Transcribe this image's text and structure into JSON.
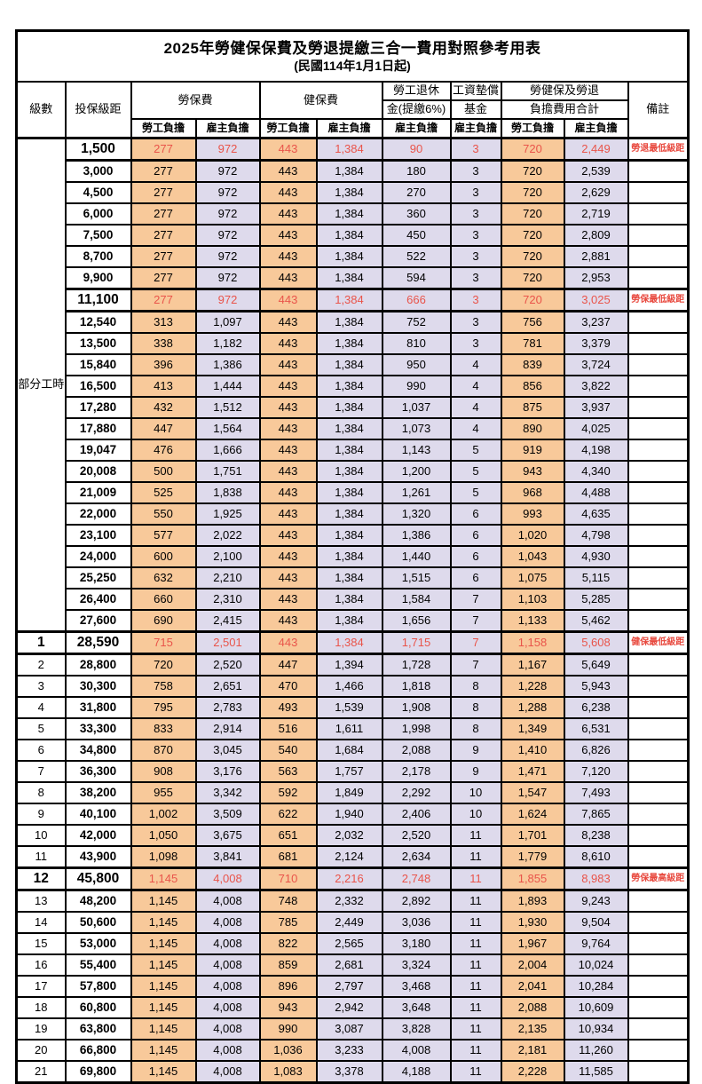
{
  "title": "2025年勞健保保費及勞退提繳三合一費用對照參考用表",
  "subtitle": "(民國114年1月1日起)",
  "colors": {
    "employee_column_bg": "#F8C99A",
    "employer_column_bg": "#DEDAEC",
    "highlight_value_red": "#E9544A",
    "remark_red": "#E8483D",
    "border_black": "#000000"
  },
  "header": {
    "level": "級數",
    "bracket": "投保級距",
    "labor": "勞保費",
    "health": "健保費",
    "pension_line1": "勞工退休",
    "pension_line2": "金(提繳6%)",
    "wage_line1": "工資墊償",
    "wage_line2": "基金",
    "total_line1": "勞健保及勞退",
    "total_line2": "負擔費用合計",
    "remark": "備註",
    "employee": "勞工負擔",
    "employer": "雇主負擔"
  },
  "part_time_label": "部分工時",
  "rows": [
    {
      "level": "",
      "bracket": "1,500",
      "values": [
        "277",
        "972",
        "443",
        "1,384",
        "90",
        "3",
        "720",
        "2,449"
      ],
      "remark": "勞退最低級距",
      "highlight": true
    },
    {
      "level": "",
      "bracket": "3,000",
      "values": [
        "277",
        "972",
        "443",
        "1,384",
        "180",
        "3",
        "720",
        "2,539"
      ],
      "remark": "",
      "highlight": false
    },
    {
      "level": "",
      "bracket": "4,500",
      "values": [
        "277",
        "972",
        "443",
        "1,384",
        "270",
        "3",
        "720",
        "2,629"
      ],
      "remark": "",
      "highlight": false
    },
    {
      "level": "",
      "bracket": "6,000",
      "values": [
        "277",
        "972",
        "443",
        "1,384",
        "360",
        "3",
        "720",
        "2,719"
      ],
      "remark": "",
      "highlight": false
    },
    {
      "level": "",
      "bracket": "7,500",
      "values": [
        "277",
        "972",
        "443",
        "1,384",
        "450",
        "3",
        "720",
        "2,809"
      ],
      "remark": "",
      "highlight": false
    },
    {
      "level": "",
      "bracket": "8,700",
      "values": [
        "277",
        "972",
        "443",
        "1,384",
        "522",
        "3",
        "720",
        "2,881"
      ],
      "remark": "",
      "highlight": false
    },
    {
      "level": "",
      "bracket": "9,900",
      "values": [
        "277",
        "972",
        "443",
        "1,384",
        "594",
        "3",
        "720",
        "2,953"
      ],
      "remark": "",
      "highlight": false
    },
    {
      "level": "",
      "bracket": "11,100",
      "values": [
        "277",
        "972",
        "443",
        "1,384",
        "666",
        "3",
        "720",
        "3,025"
      ],
      "remark": "勞保最低級距",
      "highlight": true
    },
    {
      "level": "",
      "bracket": "12,540",
      "values": [
        "313",
        "1,097",
        "443",
        "1,384",
        "752",
        "3",
        "756",
        "3,237"
      ],
      "remark": "",
      "highlight": false
    },
    {
      "level": "",
      "bracket": "13,500",
      "values": [
        "338",
        "1,182",
        "443",
        "1,384",
        "810",
        "3",
        "781",
        "3,379"
      ],
      "remark": "",
      "highlight": false
    },
    {
      "level": "",
      "bracket": "15,840",
      "values": [
        "396",
        "1,386",
        "443",
        "1,384",
        "950",
        "4",
        "839",
        "3,724"
      ],
      "remark": "",
      "highlight": false
    },
    {
      "level": "",
      "bracket": "16,500",
      "values": [
        "413",
        "1,444",
        "443",
        "1,384",
        "990",
        "4",
        "856",
        "3,822"
      ],
      "remark": "",
      "highlight": false
    },
    {
      "level": "",
      "bracket": "17,280",
      "values": [
        "432",
        "1,512",
        "443",
        "1,384",
        "1,037",
        "4",
        "875",
        "3,937"
      ],
      "remark": "",
      "highlight": false
    },
    {
      "level": "",
      "bracket": "17,880",
      "values": [
        "447",
        "1,564",
        "443",
        "1,384",
        "1,073",
        "4",
        "890",
        "4,025"
      ],
      "remark": "",
      "highlight": false
    },
    {
      "level": "",
      "bracket": "19,047",
      "values": [
        "476",
        "1,666",
        "443",
        "1,384",
        "1,143",
        "5",
        "919",
        "4,198"
      ],
      "remark": "",
      "highlight": false
    },
    {
      "level": "",
      "bracket": "20,008",
      "values": [
        "500",
        "1,751",
        "443",
        "1,384",
        "1,200",
        "5",
        "943",
        "4,340"
      ],
      "remark": "",
      "highlight": false
    },
    {
      "level": "",
      "bracket": "21,009",
      "values": [
        "525",
        "1,838",
        "443",
        "1,384",
        "1,261",
        "5",
        "968",
        "4,488"
      ],
      "remark": "",
      "highlight": false
    },
    {
      "level": "",
      "bracket": "22,000",
      "values": [
        "550",
        "1,925",
        "443",
        "1,384",
        "1,320",
        "6",
        "993",
        "4,635"
      ],
      "remark": "",
      "highlight": false
    },
    {
      "level": "",
      "bracket": "23,100",
      "values": [
        "577",
        "2,022",
        "443",
        "1,384",
        "1,386",
        "6",
        "1,020",
        "4,798"
      ],
      "remark": "",
      "highlight": false
    },
    {
      "level": "",
      "bracket": "24,000",
      "values": [
        "600",
        "2,100",
        "443",
        "1,384",
        "1,440",
        "6",
        "1,043",
        "4,930"
      ],
      "remark": "",
      "highlight": false
    },
    {
      "level": "",
      "bracket": "25,250",
      "values": [
        "632",
        "2,210",
        "443",
        "1,384",
        "1,515",
        "6",
        "1,075",
        "5,115"
      ],
      "remark": "",
      "highlight": false
    },
    {
      "level": "",
      "bracket": "26,400",
      "values": [
        "660",
        "2,310",
        "443",
        "1,384",
        "1,584",
        "7",
        "1,103",
        "5,285"
      ],
      "remark": "",
      "highlight": false
    },
    {
      "level": "",
      "bracket": "27,600",
      "values": [
        "690",
        "2,415",
        "443",
        "1,384",
        "1,656",
        "7",
        "1,133",
        "5,462"
      ],
      "remark": "",
      "highlight": false
    },
    {
      "level": "1",
      "bracket": "28,590",
      "values": [
        "715",
        "2,501",
        "443",
        "1,384",
        "1,715",
        "7",
        "1,158",
        "5,608"
      ],
      "remark": "健保最低級距",
      "highlight": true
    },
    {
      "level": "2",
      "bracket": "28,800",
      "values": [
        "720",
        "2,520",
        "447",
        "1,394",
        "1,728",
        "7",
        "1,167",
        "5,649"
      ],
      "remark": "",
      "highlight": false
    },
    {
      "level": "3",
      "bracket": "30,300",
      "values": [
        "758",
        "2,651",
        "470",
        "1,466",
        "1,818",
        "8",
        "1,228",
        "5,943"
      ],
      "remark": "",
      "highlight": false
    },
    {
      "level": "4",
      "bracket": "31,800",
      "values": [
        "795",
        "2,783",
        "493",
        "1,539",
        "1,908",
        "8",
        "1,288",
        "6,238"
      ],
      "remark": "",
      "highlight": false
    },
    {
      "level": "5",
      "bracket": "33,300",
      "values": [
        "833",
        "2,914",
        "516",
        "1,611",
        "1,998",
        "8",
        "1,349",
        "6,531"
      ],
      "remark": "",
      "highlight": false
    },
    {
      "level": "6",
      "bracket": "34,800",
      "values": [
        "870",
        "3,045",
        "540",
        "1,684",
        "2,088",
        "9",
        "1,410",
        "6,826"
      ],
      "remark": "",
      "highlight": false
    },
    {
      "level": "7",
      "bracket": "36,300",
      "values": [
        "908",
        "3,176",
        "563",
        "1,757",
        "2,178",
        "9",
        "1,471",
        "7,120"
      ],
      "remark": "",
      "highlight": false
    },
    {
      "level": "8",
      "bracket": "38,200",
      "values": [
        "955",
        "3,342",
        "592",
        "1,849",
        "2,292",
        "10",
        "1,547",
        "7,493"
      ],
      "remark": "",
      "highlight": false
    },
    {
      "level": "9",
      "bracket": "40,100",
      "values": [
        "1,002",
        "3,509",
        "622",
        "1,940",
        "2,406",
        "10",
        "1,624",
        "7,865"
      ],
      "remark": "",
      "highlight": false
    },
    {
      "level": "10",
      "bracket": "42,000",
      "values": [
        "1,050",
        "3,675",
        "651",
        "2,032",
        "2,520",
        "11",
        "1,701",
        "8,238"
      ],
      "remark": "",
      "highlight": false
    },
    {
      "level": "11",
      "bracket": "43,900",
      "values": [
        "1,098",
        "3,841",
        "681",
        "2,124",
        "2,634",
        "11",
        "1,779",
        "8,610"
      ],
      "remark": "",
      "highlight": false
    },
    {
      "level": "12",
      "bracket": "45,800",
      "values": [
        "1,145",
        "4,008",
        "710",
        "2,216",
        "2,748",
        "11",
        "1,855",
        "8,983"
      ],
      "remark": "勞保最高級距",
      "highlight": true
    },
    {
      "level": "13",
      "bracket": "48,200",
      "values": [
        "1,145",
        "4,008",
        "748",
        "2,332",
        "2,892",
        "11",
        "1,893",
        "9,243"
      ],
      "remark": "",
      "highlight": false
    },
    {
      "level": "14",
      "bracket": "50,600",
      "values": [
        "1,145",
        "4,008",
        "785",
        "2,449",
        "3,036",
        "11",
        "1,930",
        "9,504"
      ],
      "remark": "",
      "highlight": false
    },
    {
      "level": "15",
      "bracket": "53,000",
      "values": [
        "1,145",
        "4,008",
        "822",
        "2,565",
        "3,180",
        "11",
        "1,967",
        "9,764"
      ],
      "remark": "",
      "highlight": false
    },
    {
      "level": "16",
      "bracket": "55,400",
      "values": [
        "1,145",
        "4,008",
        "859",
        "2,681",
        "3,324",
        "11",
        "2,004",
        "10,024"
      ],
      "remark": "",
      "highlight": false
    },
    {
      "level": "17",
      "bracket": "57,800",
      "values": [
        "1,145",
        "4,008",
        "896",
        "2,797",
        "3,468",
        "11",
        "2,041",
        "10,284"
      ],
      "remark": "",
      "highlight": false
    },
    {
      "level": "18",
      "bracket": "60,800",
      "values": [
        "1,145",
        "4,008",
        "943",
        "2,942",
        "3,648",
        "11",
        "2,088",
        "10,609"
      ],
      "remark": "",
      "highlight": false
    },
    {
      "level": "19",
      "bracket": "63,800",
      "values": [
        "1,145",
        "4,008",
        "990",
        "3,087",
        "3,828",
        "11",
        "2,135",
        "10,934"
      ],
      "remark": "",
      "highlight": false
    },
    {
      "level": "20",
      "bracket": "66,800",
      "values": [
        "1,145",
        "4,008",
        "1,036",
        "3,233",
        "4,008",
        "11",
        "2,181",
        "11,260"
      ],
      "remark": "",
      "highlight": false
    },
    {
      "level": "21",
      "bracket": "69,800",
      "values": [
        "1,145",
        "4,008",
        "1,083",
        "3,378",
        "4,188",
        "11",
        "2,228",
        "11,585"
      ],
      "remark": "",
      "highlight": false
    }
  ]
}
